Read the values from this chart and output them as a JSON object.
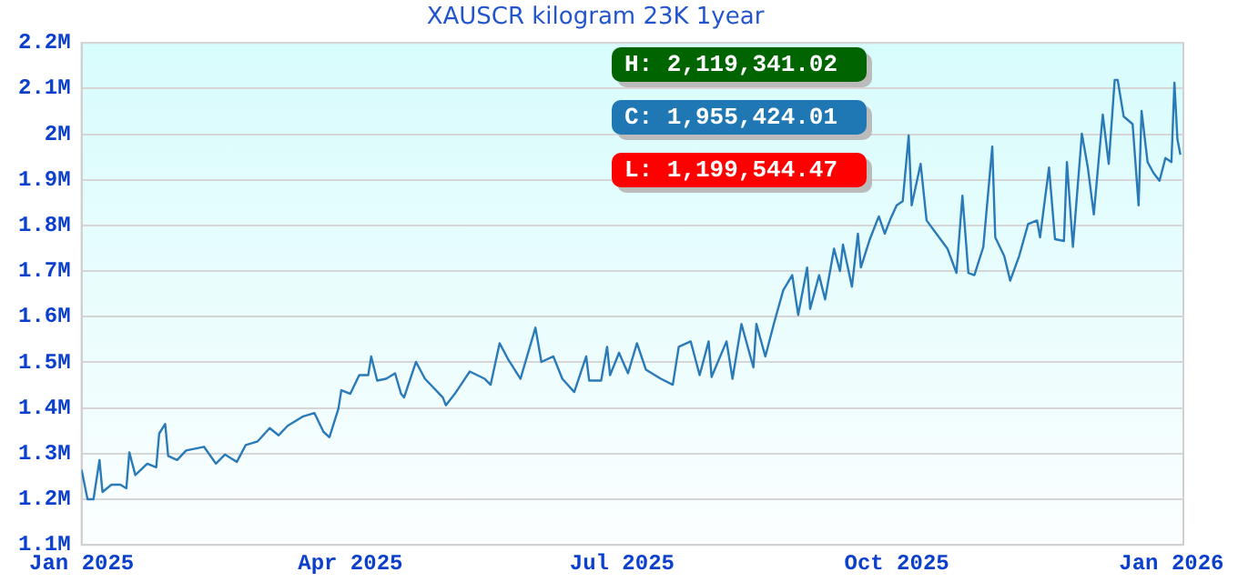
{
  "chart_data": {
    "type": "line",
    "title": "XAUSCR kilogram 23K 1year",
    "x": [
      "2025-01-01",
      "2025-01-03",
      "2025-01-05",
      "2025-01-07",
      "2025-01-08",
      "2025-01-11",
      "2025-01-14",
      "2025-01-16",
      "2025-01-17",
      "2025-01-19",
      "2025-01-23",
      "2025-01-26",
      "2025-01-27",
      "2025-01-29",
      "2025-01-30",
      "2025-02-02",
      "2025-02-05",
      "2025-02-11",
      "2025-02-15",
      "2025-02-18",
      "2025-02-22",
      "2025-02-25",
      "2025-03-01",
      "2025-03-05",
      "2025-03-08",
      "2025-03-11",
      "2025-03-16",
      "2025-03-20",
      "2025-03-23",
      "2025-03-25",
      "2025-03-28",
      "2025-03-29",
      "2025-04-01",
      "2025-04-04",
      "2025-04-07",
      "2025-04-08",
      "2025-04-10",
      "2025-04-13",
      "2025-04-16",
      "2025-04-18",
      "2025-04-19",
      "2025-04-23",
      "2025-04-26",
      "2025-05-02",
      "2025-05-03",
      "2025-05-06",
      "2025-05-11",
      "2025-05-16",
      "2025-05-18",
      "2025-05-21",
      "2025-05-24",
      "2025-05-28",
      "2025-06-02",
      "2025-06-04",
      "2025-06-08",
      "2025-06-11",
      "2025-06-15",
      "2025-06-19",
      "2025-06-20",
      "2025-06-24",
      "2025-06-26",
      "2025-06-27",
      "2025-06-30",
      "2025-07-03",
      "2025-07-06",
      "2025-07-09",
      "2025-07-14",
      "2025-07-18",
      "2025-07-20",
      "2025-07-24",
      "2025-07-27",
      "2025-07-30",
      "2025-07-31",
      "2025-08-05",
      "2025-08-07",
      "2025-08-10",
      "2025-08-14",
      "2025-08-15",
      "2025-08-18",
      "2025-08-21",
      "2025-08-24",
      "2025-08-27",
      "2025-08-29",
      "2025-09-01",
      "2025-09-02",
      "2025-09-05",
      "2025-09-07",
      "2025-09-10",
      "2025-09-12",
      "2025-09-13",
      "2025-09-16",
      "2025-09-18",
      "2025-09-19",
      "2025-09-22",
      "2025-09-25",
      "2025-09-27",
      "2025-09-29",
      "2025-10-01",
      "2025-10-03",
      "2025-10-05",
      "2025-10-06",
      "2025-10-09",
      "2025-10-11",
      "2025-10-18",
      "2025-10-21",
      "2025-10-23",
      "2025-10-25",
      "2025-10-27",
      "2025-10-30",
      "2025-11-02",
      "2025-11-03",
      "2025-11-06",
      "2025-11-08",
      "2025-11-11",
      "2025-11-14",
      "2025-11-17",
      "2025-11-18",
      "2025-11-21",
      "2025-11-23",
      "2025-11-26",
      "2025-11-27",
      "2025-11-29",
      "2025-12-02",
      "2025-12-04",
      "2025-12-06",
      "2025-12-09",
      "2025-12-11",
      "2025-12-13",
      "2025-12-14",
      "2025-12-16",
      "2025-12-19",
      "2025-12-21",
      "2025-12-22",
      "2025-12-24",
      "2025-12-26",
      "2025-12-28",
      "2025-12-30",
      "2026-01-01",
      "2026-01-02",
      "2026-01-03",
      "2026-01-04"
    ],
    "series": [
      {
        "color": "#2a7ab8",
        "values": [
          1265000,
          1200000,
          1200000,
          1286000,
          1216000,
          1232000,
          1232000,
          1224000,
          1303000,
          1253000,
          1278000,
          1270000,
          1344000,
          1365000,
          1295000,
          1286000,
          1307000,
          1315000,
          1278000,
          1298000,
          1282000,
          1319000,
          1327000,
          1356000,
          1340000,
          1361000,
          1381000,
          1389000,
          1348000,
          1336000,
          1398000,
          1439000,
          1431000,
          1472000,
          1472000,
          1513000,
          1460000,
          1464000,
          1476000,
          1431000,
          1423000,
          1501000,
          1464000,
          1423000,
          1406000,
          1431000,
          1480000,
          1464000,
          1451000,
          1542000,
          1505000,
          1464000,
          1576000,
          1501000,
          1513000,
          1464000,
          1435000,
          1513000,
          1460000,
          1460000,
          1534000,
          1472000,
          1521000,
          1476000,
          1542000,
          1484000,
          1464000,
          1451000,
          1534000,
          1546000,
          1472000,
          1546000,
          1468000,
          1546000,
          1464000,
          1584000,
          1489000,
          1584000,
          1513000,
          1588000,
          1658000,
          1691000,
          1604000,
          1708000,
          1617000,
          1691000,
          1638000,
          1749000,
          1700000,
          1758000,
          1666000,
          1782000,
          1708000,
          1770000,
          1820000,
          1782000,
          1816000,
          1844000,
          1853000,
          1997000,
          1844000,
          1935000,
          1811000,
          1749000,
          1696000,
          1865000,
          1696000,
          1691000,
          1753000,
          1973000,
          1774000,
          1733000,
          1679000,
          1733000,
          1803000,
          1811000,
          1774000,
          1927000,
          1770000,
          1766000,
          1939000,
          1753000,
          2001000,
          1927000,
          1824000,
          2043000,
          1935000,
          2119000,
          2119000,
          2039000,
          2022000,
          1844000,
          2051000,
          1939000,
          1915000,
          1898000,
          1948000,
          1939000,
          2113000,
          1989000,
          1955000
        ]
      }
    ],
    "xlim": [
      "2025-01-01",
      "2026-01-05"
    ],
    "xticks": [
      {
        "value": "2025-01-01",
        "label": "Jan 2025"
      },
      {
        "value": "2025-04-01",
        "label": "Apr 2025"
      },
      {
        "value": "2025-07-01",
        "label": "Jul 2025"
      },
      {
        "value": "2025-10-01",
        "label": "Oct 2025"
      },
      {
        "value": "2026-01-01",
        "label": "Jan 2026"
      }
    ],
    "ylim": [
      1100000,
      2200000
    ],
    "yticks": [
      {
        "value": 1100000,
        "label": "1.1M"
      },
      {
        "value": 1200000,
        "label": "1.2M"
      },
      {
        "value": 1300000,
        "label": "1.3M"
      },
      {
        "value": 1400000,
        "label": "1.4M"
      },
      {
        "value": 1500000,
        "label": "1.5M"
      },
      {
        "value": 1600000,
        "label": "1.6M"
      },
      {
        "value": 1700000,
        "label": "1.7M"
      },
      {
        "value": 1800000,
        "label": "1.8M"
      },
      {
        "value": 1900000,
        "label": "1.9M"
      },
      {
        "value": 2000000,
        "label": "2M"
      },
      {
        "value": 2100000,
        "label": "2.1M"
      },
      {
        "value": 2200000,
        "label": "2.2M"
      }
    ],
    "grid": "y",
    "annotations": [
      "H: 2,119,341.02",
      "C: 1,955,424.01",
      "L: 1,199,544.47"
    ]
  }
}
